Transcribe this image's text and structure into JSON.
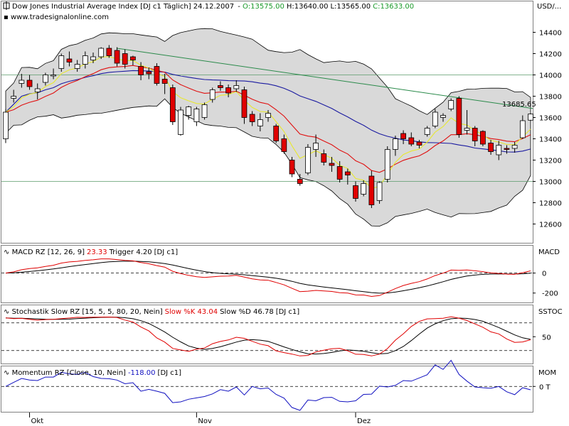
{
  "chart_data": [
    {
      "type": "candlestick",
      "title": "Dow Jones Industrial Average Index [DJ c1  Täglich] 24.12.2007",
      "ohlc_label": {
        "open": "O:13575.00",
        "high": "H:13640.00",
        "low": "L:13565.00",
        "close": "C:13633.00"
      },
      "watermark": "www.tradesignalonline.com",
      "unit_label": "USD/...",
      "ylim": [
        12450,
        14650
      ],
      "y_ticks": [
        12600,
        12800,
        13000,
        13200,
        13400,
        13600,
        13800,
        14000,
        14200,
        14400
      ],
      "x_labels": [
        {
          "index": 3,
          "label": "Okt"
        },
        {
          "index": 24,
          "label": "Nov"
        },
        {
          "index": 44,
          "label": "Dez"
        }
      ],
      "last_value_label": "13685.65",
      "horizontal_lines": [
        14000,
        13000
      ],
      "trendline": {
        "start": {
          "index": 14,
          "value": 14250
        },
        "end": {
          "index": 59,
          "value": 13685
        }
      },
      "candles": [
        {
          "o": 13400,
          "h": 13680,
          "l": 13360,
          "c": 13650
        },
        {
          "o": 13780,
          "h": 13860,
          "l": 13740,
          "c": 13800
        },
        {
          "o": 13920,
          "h": 14010,
          "l": 13880,
          "c": 13950
        },
        {
          "o": 13950,
          "h": 14000,
          "l": 13860,
          "c": 13890
        },
        {
          "o": 13840,
          "h": 13920,
          "l": 13770,
          "c": 13870
        },
        {
          "o": 13930,
          "h": 14020,
          "l": 13900,
          "c": 14000
        },
        {
          "o": 13990,
          "h": 14060,
          "l": 13960,
          "c": 14000
        },
        {
          "o": 14060,
          "h": 14200,
          "l": 14030,
          "c": 14180
        },
        {
          "o": 14150,
          "h": 14220,
          "l": 14080,
          "c": 14120
        },
        {
          "o": 14060,
          "h": 14140,
          "l": 14030,
          "c": 14100
        },
        {
          "o": 14100,
          "h": 14220,
          "l": 14060,
          "c": 14180
        },
        {
          "o": 14140,
          "h": 14210,
          "l": 14110,
          "c": 14170
        },
        {
          "o": 14170,
          "h": 14260,
          "l": 14150,
          "c": 14250
        },
        {
          "o": 14250,
          "h": 14280,
          "l": 14160,
          "c": 14180
        },
        {
          "o": 14230,
          "h": 14260,
          "l": 14080,
          "c": 14110
        },
        {
          "o": 14200,
          "h": 14240,
          "l": 14060,
          "c": 14100
        },
        {
          "o": 14170,
          "h": 14180,
          "l": 14090,
          "c": 14140
        },
        {
          "o": 14080,
          "h": 14120,
          "l": 13950,
          "c": 14000
        },
        {
          "o": 14030,
          "h": 14070,
          "l": 13960,
          "c": 14010
        },
        {
          "o": 14080,
          "h": 14110,
          "l": 13900,
          "c": 13920
        },
        {
          "o": 13960,
          "h": 14010,
          "l": 13820,
          "c": 13920
        },
        {
          "o": 13880,
          "h": 13910,
          "l": 13530,
          "c": 13560
        },
        {
          "o": 13440,
          "h": 13700,
          "l": 13430,
          "c": 13670
        },
        {
          "o": 13620,
          "h": 13710,
          "l": 13580,
          "c": 13700
        },
        {
          "o": 13560,
          "h": 13700,
          "l": 13520,
          "c": 13680
        },
        {
          "o": 13600,
          "h": 13740,
          "l": 13580,
          "c": 13720
        },
        {
          "o": 13770,
          "h": 13880,
          "l": 13740,
          "c": 13860
        },
        {
          "o": 13900,
          "h": 13940,
          "l": 13850,
          "c": 13880
        },
        {
          "o": 13880,
          "h": 13910,
          "l": 13790,
          "c": 13830
        },
        {
          "o": 13870,
          "h": 13950,
          "l": 13840,
          "c": 13900
        },
        {
          "o": 13860,
          "h": 13890,
          "l": 13540,
          "c": 13600
        },
        {
          "o": 13630,
          "h": 13660,
          "l": 13520,
          "c": 13560
        },
        {
          "o": 13520,
          "h": 13640,
          "l": 13470,
          "c": 13580
        },
        {
          "o": 13600,
          "h": 13670,
          "l": 13560,
          "c": 13640
        },
        {
          "o": 13520,
          "h": 13540,
          "l": 13360,
          "c": 13380
        },
        {
          "o": 13400,
          "h": 13440,
          "l": 13260,
          "c": 13280
        },
        {
          "o": 13200,
          "h": 13230,
          "l": 13040,
          "c": 13070
        },
        {
          "o": 13020,
          "h": 13070,
          "l": 12960,
          "c": 12980
        },
        {
          "o": 13080,
          "h": 13350,
          "l": 13060,
          "c": 13320
        },
        {
          "o": 13300,
          "h": 13440,
          "l": 13230,
          "c": 13360
        },
        {
          "o": 13260,
          "h": 13300,
          "l": 13150,
          "c": 13180
        },
        {
          "o": 13170,
          "h": 13230,
          "l": 13090,
          "c": 13150
        },
        {
          "o": 13140,
          "h": 13190,
          "l": 12990,
          "c": 13020
        },
        {
          "o": 13090,
          "h": 13120,
          "l": 12970,
          "c": 13060
        },
        {
          "o": 12960,
          "h": 13000,
          "l": 12810,
          "c": 12840
        },
        {
          "o": 12880,
          "h": 13010,
          "l": 12860,
          "c": 12980
        },
        {
          "o": 13050,
          "h": 13100,
          "l": 12750,
          "c": 12780
        },
        {
          "o": 12820,
          "h": 13000,
          "l": 12790,
          "c": 12990
        },
        {
          "o": 13020,
          "h": 13330,
          "l": 12990,
          "c": 13300
        },
        {
          "o": 13300,
          "h": 13430,
          "l": 13240,
          "c": 13400
        },
        {
          "o": 13450,
          "h": 13480,
          "l": 13350,
          "c": 13400
        },
        {
          "o": 13410,
          "h": 13460,
          "l": 13330,
          "c": 13350
        },
        {
          "o": 13370,
          "h": 13390,
          "l": 13310,
          "c": 13340
        },
        {
          "o": 13440,
          "h": 13520,
          "l": 13420,
          "c": 13500
        },
        {
          "o": 13520,
          "h": 13680,
          "l": 13500,
          "c": 13650
        },
        {
          "o": 13600,
          "h": 13640,
          "l": 13560,
          "c": 13620
        },
        {
          "o": 13680,
          "h": 13780,
          "l": 13660,
          "c": 13760
        },
        {
          "o": 13780,
          "h": 13800,
          "l": 13410,
          "c": 13440
        },
        {
          "o": 13480,
          "h": 13670,
          "l": 13440,
          "c": 13500
        },
        {
          "o": 13500,
          "h": 13520,
          "l": 13330,
          "c": 13380
        },
        {
          "o": 13470,
          "h": 13480,
          "l": 13330,
          "c": 13350
        },
        {
          "o": 13360,
          "h": 13390,
          "l": 13250,
          "c": 13280
        },
        {
          "o": 13250,
          "h": 13380,
          "l": 13200,
          "c": 13340
        },
        {
          "o": 13310,
          "h": 13340,
          "l": 13260,
          "c": 13300
        },
        {
          "o": 13310,
          "h": 13370,
          "l": 13270,
          "c": 13340
        },
        {
          "o": 13410,
          "h": 13620,
          "l": 13400,
          "c": 13570
        },
        {
          "o": 13575,
          "h": 13640,
          "l": 13565,
          "c": 13633
        }
      ]
    },
    {
      "type": "line",
      "title": "MACD RZ [12, 26, 9]",
      "values_label": {
        "macd": "23.33",
        "trigger": "Trigger 4.20",
        "instrument": "[DJ c1]"
      },
      "unit_label": "MACD",
      "ylim": [
        -280,
        260
      ],
      "y_ticks": [
        0,
        -200
      ],
      "reference_line": 0
    },
    {
      "type": "line",
      "title": "Stochastik Slow RZ [15, 5, 5, 80, 20, Nein]",
      "values_label": {
        "k": "Slow %K 43.04",
        "d": "Slow %D 46.78",
        "instrument": "[DJ c1]"
      },
      "unit_label": "SSTOC",
      "ylim": [
        -5,
        115
      ],
      "y_ticks": [
        50
      ],
      "reference_lines": [
        80,
        20
      ]
    },
    {
      "type": "line",
      "title": "Momentum RZ [Close, 10, Nein]",
      "values_label": {
        "value": "-118.00",
        "instrument": "[DJ c1]"
      },
      "unit_label": "MOM",
      "ylim": [
        -900,
        700
      ],
      "y_ticks": [
        0
      ],
      "y_tick_labels": [
        "0 T"
      ],
      "reference_line": 0
    }
  ],
  "colors": {
    "up_candle": "#ffffff",
    "down_candle": "#e00000",
    "band_fill": "#d9d9d9",
    "sma_fast": "#e8e830",
    "sma_mid": "#e01010",
    "sma_slow": "#1a1aa0",
    "trendline": "#2a8a4a",
    "ohlc_text": "#1a9a2a",
    "red_text": "#e00000",
    "blue_text": "#1010c0"
  }
}
